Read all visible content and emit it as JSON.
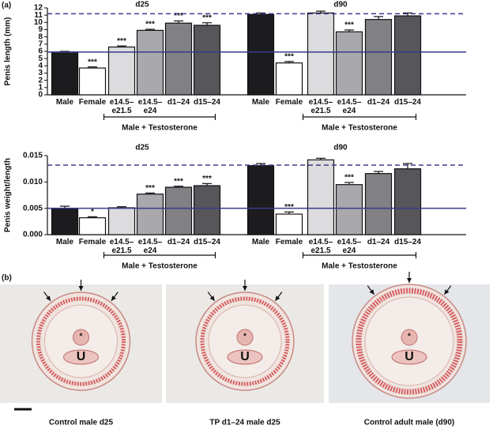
{
  "panel_labels": [
    "(a)",
    "(b)"
  ],
  "chart_data": [
    {
      "type": "bar",
      "ylabel": "Penis length (mm)",
      "ylim": [
        0,
        12
      ],
      "yticks": [
        0,
        1,
        2,
        3,
        4,
        5,
        6,
        7,
        8,
        9,
        10,
        11,
        12
      ],
      "colors": [
        "#1c1c1e",
        "#ffffff",
        "#dcdcde",
        "#a9a9ad",
        "#808085",
        "#56565b"
      ],
      "reference_color": "#3a3a8c",
      "reference_lines": [
        {
          "value": 5.9,
          "style": "solid"
        },
        {
          "value": 11.2,
          "style": "dashed"
        }
      ],
      "panels": [
        {
          "title": "d25",
          "categories": [
            "Male",
            "Female",
            "e14.5–e21.5",
            "e14.5–e24",
            "d1–24",
            "d15–24"
          ],
          "values": [
            5.9,
            3.7,
            6.6,
            8.9,
            9.9,
            9.6
          ],
          "errors": [
            0.1,
            0.15,
            0.15,
            0.15,
            0.3,
            0.35
          ],
          "annotations": [
            null,
            "***",
            "***",
            "***",
            "***",
            "***"
          ],
          "group_label": "Male + Testosterone"
        },
        {
          "title": "d90",
          "categories": [
            "Male",
            "Female",
            "e14.5–e21.5",
            "e14.5–e24",
            "d1–24",
            "d15–24"
          ],
          "values": [
            11.1,
            4.4,
            11.3,
            8.7,
            10.4,
            10.9
          ],
          "errors": [
            0.2,
            0.2,
            0.25,
            0.25,
            0.4,
            0.4
          ],
          "annotations": [
            null,
            "***",
            null,
            "***",
            null,
            null
          ],
          "group_label": "Male + Testosterone"
        }
      ]
    },
    {
      "type": "bar",
      "ylabel": "Penis weight/length",
      "ylim": [
        0,
        0.015
      ],
      "yticks": [
        {
          "value": 0,
          "label": "0.000"
        },
        {
          "value": 0.005,
          "label": "0.005"
        },
        {
          "value": 0.01,
          "label": "0.010"
        },
        {
          "value": 0.015,
          "label": "0.015"
        }
      ],
      "colors": [
        "#1c1c1e",
        "#ffffff",
        "#dcdcde",
        "#a9a9ad",
        "#808085",
        "#56565b"
      ],
      "reference_color": "#3a3a8c",
      "reference_lines": [
        {
          "value": 0.005,
          "style": "solid"
        },
        {
          "value": 0.0132,
          "style": "dashed"
        }
      ],
      "panels": [
        {
          "title": "d25",
          "categories": [
            "Male",
            "Female",
            "e14.5–e21.5",
            "e14.5–e24",
            "d1–24",
            "d15–24"
          ],
          "values": [
            0.0049,
            0.0032,
            0.0051,
            0.0077,
            0.009,
            0.0093
          ],
          "errors": [
            0.0005,
            0.0002,
            0.0002,
            0.0002,
            0.0002,
            0.0004
          ],
          "annotations": [
            null,
            "*",
            null,
            "***",
            "***",
            "***"
          ],
          "group_label": "Male + Testosterone"
        },
        {
          "title": "d90",
          "categories": [
            "Male",
            "Female",
            "e14.5–e21.5",
            "e14.5–e24",
            "d1–24",
            "d15–24"
          ],
          "values": [
            0.0131,
            0.0039,
            0.0142,
            0.0095,
            0.0116,
            0.0125
          ],
          "errors": [
            0.0004,
            0.0004,
            0.0003,
            0.0004,
            0.0004,
            0.001
          ],
          "annotations": [
            null,
            "***",
            null,
            "***",
            null,
            null
          ],
          "group_label": "Male + Testosterone"
        }
      ]
    }
  ],
  "images": [
    {
      "caption": "Control male d25",
      "marks": [
        "*",
        "U"
      ]
    },
    {
      "caption": "TP d1–24 male d25",
      "marks": [
        "*",
        "U"
      ]
    },
    {
      "caption": "Control adult male (d90)",
      "marks": [
        "*",
        "U"
      ]
    }
  ]
}
